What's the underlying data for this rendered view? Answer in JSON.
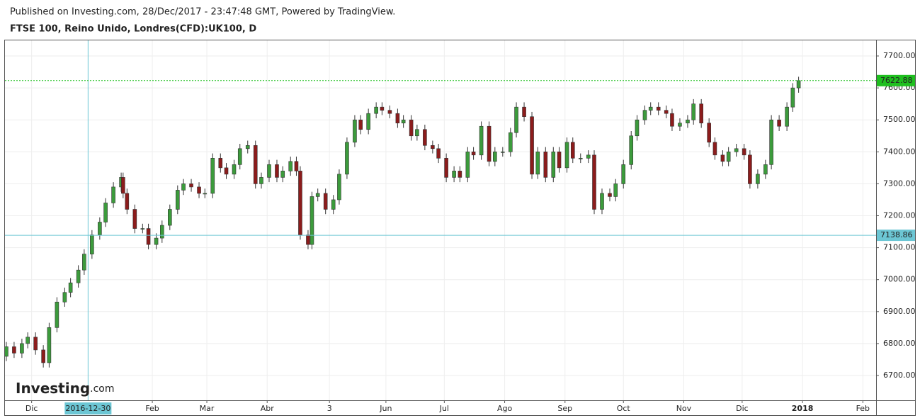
{
  "chart_data": {
    "type": "candlestick",
    "published": "Published on Investing.com, 28/Dec/2017 - 23:47:48 GMT, Powered by TradingView.",
    "title": "FTSE 100, Reino Unido, Londres(CFD):UK100, D",
    "logo": {
      "name": "Investing",
      "suffix": ".com"
    },
    "up_color": "#3c9b3c",
    "down_color": "#8c1c1c",
    "price_line_color": "#1fbf1f",
    "crosshair_color": "#6cc6d4",
    "grid": true,
    "x": [
      -13,
      -9,
      -5,
      -2,
      2,
      6,
      9,
      13,
      17,
      20,
      24,
      27,
      31,
      35,
      38,
      42,
      46,
      47,
      49,
      53,
      57,
      60,
      64,
      67,
      71,
      75,
      78,
      82,
      86,
      89,
      93,
      97,
      100,
      104,
      107,
      111,
      115,
      118,
      122,
      126,
      129,
      133,
      136,
      138,
      142,
      144,
      147,
      151,
      155,
      158,
      162,
      166,
      169,
      173,
      177,
      180,
      184,
      188,
      191,
      195,
      198,
      202,
      206,
      209,
      213,
      217,
      220,
      224,
      227,
      231,
      235,
      238,
      242,
      246,
      249,
      253,
      257,
      260,
      264,
      268,
      271,
      275,
      278,
      282,
      286,
      289,
      293,
      297,
      300,
      304,
      308,
      311,
      315,
      318,
      322,
      326,
      329,
      333,
      337,
      340,
      344,
      348,
      351,
      355,
      358,
      362,
      366,
      369,
      373,
      377,
      380,
      384,
      388,
      391,
      394
    ],
    "open": [
      6760,
      6790,
      6770,
      6800,
      6820,
      6780,
      6740,
      6850,
      6930,
      6960,
      6990,
      7030,
      7080,
      7140,
      7180,
      7240,
      7290,
      7320,
      7270,
      7220,
      7160,
      7160,
      7110,
      7130,
      7170,
      7220,
      7280,
      7300,
      7290,
      7270,
      7270,
      7380,
      7350,
      7330,
      7360,
      7410,
      7420,
      7300,
      7320,
      7360,
      7320,
      7340,
      7370,
      7340,
      7140,
      7110,
      7260,
      7270,
      7220,
      7250,
      7330,
      7430,
      7500,
      7470,
      7520,
      7540,
      7530,
      7520,
      7490,
      7500,
      7450,
      7470,
      7420,
      7410,
      7380,
      7320,
      7340,
      7320,
      7400,
      7390,
      7480,
      7370,
      7400,
      7400,
      7460,
      7540,
      7510,
      7330,
      7400,
      7320,
      7400,
      7350,
      7430,
      7380,
      7380,
      7390,
      7220,
      7270,
      7260,
      7300,
      7360,
      7450,
      7500,
      7530,
      7540,
      7530,
      7520,
      7480,
      7490,
      7500,
      7550,
      7490,
      7430,
      7390,
      7370,
      7400,
      7410,
      7390,
      7300,
      7330,
      7360,
      7500,
      7480,
      7540,
      7600
    ],
    "high": [
      6805,
      6805,
      6815,
      6835,
      6835,
      6795,
      6865,
      6945,
      6975,
      7005,
      7045,
      7095,
      7155,
      7195,
      7255,
      7305,
      7335,
      7335,
      7285,
      7235,
      7175,
      7175,
      7145,
      7185,
      7235,
      7295,
      7315,
      7315,
      7305,
      7285,
      7395,
      7395,
      7365,
      7375,
      7425,
      7435,
      7435,
      7335,
      7375,
      7375,
      7355,
      7385,
      7385,
      7355,
      7155,
      7275,
      7285,
      7285,
      7265,
      7345,
      7445,
      7515,
      7515,
      7535,
      7555,
      7555,
      7545,
      7535,
      7515,
      7515,
      7485,
      7485,
      7435,
      7425,
      7395,
      7355,
      7355,
      7415,
      7415,
      7495,
      7495,
      7415,
      7415,
      7475,
      7555,
      7555,
      7525,
      7415,
      7415,
      7415,
      7415,
      7445,
      7445,
      7395,
      7405,
      7405,
      7285,
      7285,
      7315,
      7375,
      7465,
      7515,
      7545,
      7555,
      7555,
      7545,
      7535,
      7505,
      7515,
      7565,
      7565,
      7505,
      7445,
      7405,
      7415,
      7425,
      7425,
      7405,
      7345,
      7375,
      7515,
      7515,
      7555,
      7615,
      7635
    ],
    "low": [
      6745,
      6755,
      6755,
      6785,
      6765,
      6725,
      6725,
      6835,
      6915,
      6945,
      6975,
      7015,
      7065,
      7125,
      7165,
      7225,
      7275,
      7255,
      7205,
      7145,
      7145,
      7095,
      7095,
      7115,
      7155,
      7205,
      7265,
      7275,
      7255,
      7255,
      7255,
      7335,
      7315,
      7315,
      7345,
      7395,
      7285,
      7285,
      7305,
      7305,
      7305,
      7325,
      7325,
      7125,
      7095,
      7095,
      7245,
      7205,
      7205,
      7235,
      7315,
      7415,
      7455,
      7455,
      7505,
      7515,
      7505,
      7475,
      7475,
      7435,
      7435,
      7405,
      7395,
      7365,
      7305,
      7305,
      7305,
      7305,
      7375,
      7375,
      7355,
      7355,
      7385,
      7385,
      7445,
      7495,
      7315,
      7315,
      7305,
      7305,
      7335,
      7335,
      7365,
      7365,
      7365,
      7205,
      7205,
      7245,
      7245,
      7285,
      7345,
      7435,
      7485,
      7515,
      7515,
      7505,
      7465,
      7465,
      7475,
      7485,
      7475,
      7415,
      7375,
      7355,
      7355,
      7385,
      7375,
      7285,
      7285,
      7315,
      7345,
      7465,
      7465,
      7525,
      7585
    ],
    "close": [
      6790,
      6770,
      6800,
      6820,
      6780,
      6740,
      6850,
      6930,
      6960,
      6990,
      7030,
      7080,
      7140,
      7180,
      7240,
      7290,
      7320,
      7270,
      7220,
      7160,
      7160,
      7110,
      7130,
      7170,
      7220,
      7280,
      7300,
      7290,
      7270,
      7270,
      7380,
      7350,
      7330,
      7360,
      7410,
      7420,
      7300,
      7320,
      7360,
      7320,
      7340,
      7370,
      7340,
      7140,
      7110,
      7260,
      7270,
      7220,
      7250,
      7330,
      7430,
      7500,
      7470,
      7520,
      7540,
      7530,
      7520,
      7490,
      7500,
      7450,
      7470,
      7420,
      7410,
      7380,
      7320,
      7340,
      7320,
      7400,
      7390,
      7480,
      7370,
      7400,
      7400,
      7460,
      7540,
      7510,
      7330,
      7400,
      7320,
      7400,
      7350,
      7430,
      7380,
      7380,
      7390,
      7220,
      7270,
      7260,
      7300,
      7360,
      7450,
      7500,
      7530,
      7540,
      7530,
      7520,
      7480,
      7490,
      7500,
      7550,
      7490,
      7430,
      7390,
      7370,
      7400,
      7410,
      7390,
      7300,
      7330,
      7360,
      7500,
      7480,
      7540,
      7600,
      7622.88
    ],
    "xlim": [
      -13.7,
      433.8
    ],
    "xticks": [
      {
        "value": 0,
        "label": "Dic"
      },
      {
        "value": 62,
        "label": "Feb"
      },
      {
        "value": 90,
        "label": "Mar"
      },
      {
        "value": 121,
        "label": "Abr"
      },
      {
        "value": 153,
        "label": "3"
      },
      {
        "value": 182,
        "label": "Jun"
      },
      {
        "value": 212,
        "label": "Jul"
      },
      {
        "value": 243,
        "label": "Ago"
      },
      {
        "value": 274,
        "label": "Sep"
      },
      {
        "value": 304,
        "label": "Oct"
      },
      {
        "value": 335,
        "label": "Nov"
      },
      {
        "value": 365,
        "label": "Dic"
      },
      {
        "value": 396,
        "label": "2018"
      },
      {
        "value": 427,
        "label": "Feb"
      }
    ],
    "ylim": [
      6622.4,
      7748.8
    ],
    "yticks": [
      {
        "value": 6700,
        "label": "6700.00"
      },
      {
        "value": 6800,
        "label": "6800.00"
      },
      {
        "value": 6900,
        "label": "6900.00"
      },
      {
        "value": 7000,
        "label": "7000.00"
      },
      {
        "value": 7100,
        "label": "7100.00"
      },
      {
        "value": 7200,
        "label": "7200.00"
      },
      {
        "value": 7300,
        "label": "7300.00"
      },
      {
        "value": 7400,
        "label": "7400.00"
      },
      {
        "value": 7500,
        "label": "7500.00"
      },
      {
        "value": 7600,
        "label": "7600.00"
      },
      {
        "value": 7700,
        "label": "7700.00"
      }
    ],
    "crosshair_x": {
      "value": 29,
      "label": "2016-12-30"
    },
    "crosshair_y": 7138.86
  }
}
